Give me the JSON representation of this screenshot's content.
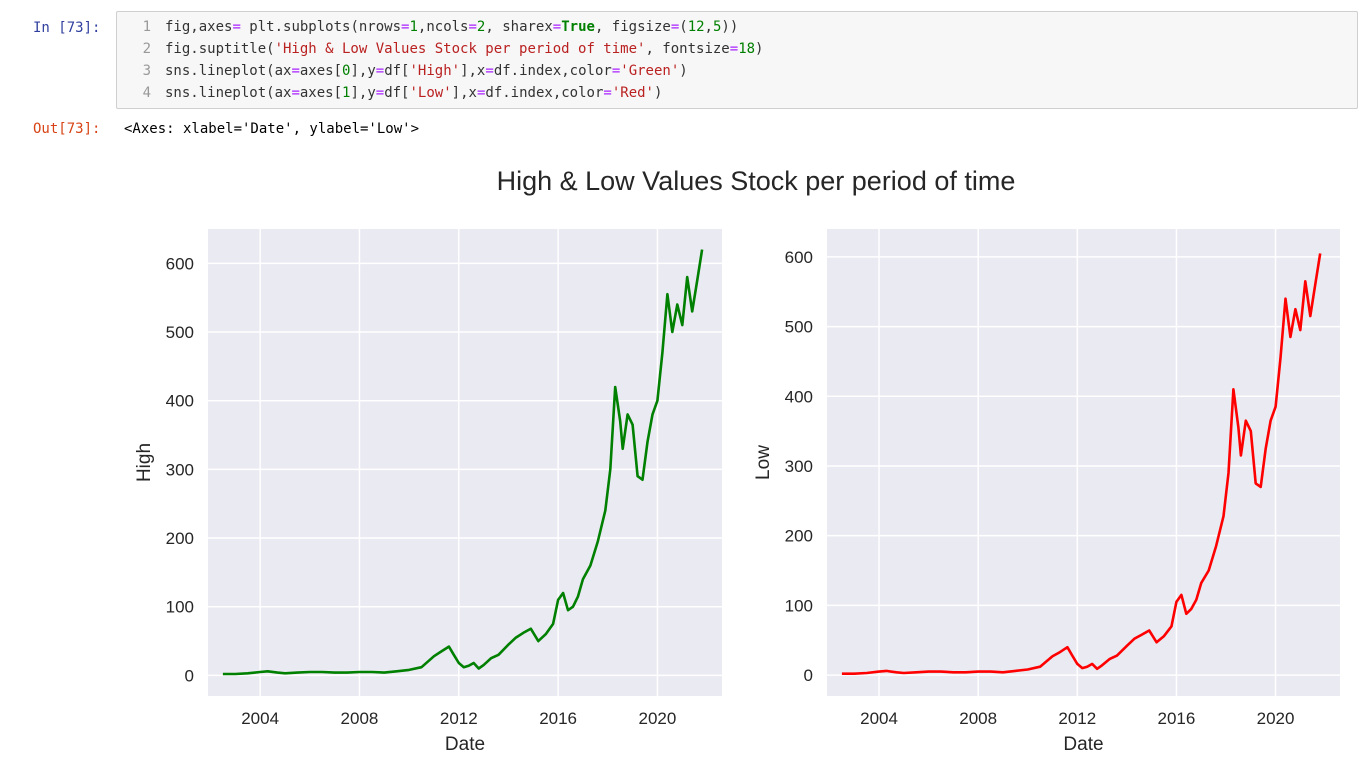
{
  "cell": {
    "in_prompt": "In [73]:",
    "out_prompt": "Out[73]:",
    "output_text": "<Axes: xlabel='Date', ylabel='Low'>",
    "code_lines": [
      {
        "n": "1",
        "html": "fig,axes<span class='op'>=</span> plt.subplots(nrows<span class='op'>=</span><span class='num'>1</span>,ncols<span class='op'>=</span><span class='num'>2</span>, sharex<span class='op'>=</span><span class='kw'>True</span>, figsize<span class='op'>=</span>(<span class='num'>12</span>,<span class='num'>5</span>))"
      },
      {
        "n": "2",
        "html": "fig.suptitle(<span class='str'>'High &amp; Low Values Stock per period of time'</span>, fontsize<span class='op'>=</span><span class='num'>18</span>)"
      },
      {
        "n": "3",
        "html": "sns.lineplot(ax<span class='op'>=</span>axes[<span class='num'>0</span>],y<span class='op'>=</span>df[<span class='str'>'High'</span>],x<span class='op'>=</span>df.index,color<span class='op'>=</span><span class='str'>'Green'</span>)"
      },
      {
        "n": "4",
        "html": "sns.lineplot(ax<span class='op'>=</span>axes[<span class='num'>1</span>],y<span class='op'>=</span>df[<span class='str'>'Low'</span>],x<span class='op'>=</span>df.index,color<span class='op'>=</span><span class='str'>'Red'</span>)"
      }
    ]
  },
  "figure": {
    "suptitle": "High & Low Values Stock per period of time"
  },
  "chart_data": [
    {
      "type": "line",
      "xlabel": "Date",
      "ylabel": "High",
      "color": "#008000",
      "xticks": [
        "2004",
        "2008",
        "2012",
        "2016",
        "2020"
      ],
      "yticks": [
        0,
        100,
        200,
        300,
        400,
        500,
        600
      ],
      "xlim": [
        2001.9,
        2022.6
      ],
      "ylim": [
        -30,
        650
      ],
      "grid": true,
      "series": [
        {
          "x": [
            2002.5,
            2003.0,
            2003.5,
            2004.0,
            2004.3,
            2004.7,
            2005.0,
            2005.5,
            2006.0,
            2006.5,
            2007.0,
            2007.5,
            2008.0,
            2008.5,
            2009.0,
            2009.5,
            2010.0,
            2010.5,
            2011.0,
            2011.3,
            2011.6,
            2011.8,
            2012.0,
            2012.2,
            2012.4,
            2012.6,
            2012.8,
            2013.0,
            2013.3,
            2013.6,
            2014.0,
            2014.3,
            2014.6,
            2014.9,
            2015.2,
            2015.5,
            2015.8,
            2016.0,
            2016.2,
            2016.4,
            2016.6,
            2016.8,
            2017.0,
            2017.3,
            2017.6,
            2017.9,
            2018.1,
            2018.3,
            2018.5,
            2018.6,
            2018.8,
            2019.0,
            2019.2,
            2019.4,
            2019.6,
            2019.8,
            2020.0,
            2020.2,
            2020.4,
            2020.6,
            2020.8,
            2021.0,
            2021.2,
            2021.4,
            2021.6,
            2021.8
          ],
          "y": [
            2,
            2,
            3,
            5,
            6,
            4,
            3,
            4,
            5,
            5,
            4,
            4,
            5,
            5,
            4,
            6,
            8,
            12,
            28,
            35,
            42,
            30,
            18,
            12,
            14,
            18,
            10,
            15,
            25,
            30,
            45,
            55,
            62,
            68,
            50,
            60,
            75,
            110,
            120,
            95,
            100,
            115,
            140,
            160,
            195,
            240,
            300,
            420,
            370,
            330,
            380,
            365,
            290,
            285,
            340,
            380,
            400,
            470,
            555,
            500,
            540,
            510,
            580,
            530,
            575,
            620
          ]
        }
      ]
    },
    {
      "type": "line",
      "xlabel": "Date",
      "ylabel": "Low",
      "color": "#ff0000",
      "xticks": [
        "2004",
        "2008",
        "2012",
        "2016",
        "2020"
      ],
      "yticks": [
        0,
        100,
        200,
        300,
        400,
        500,
        600
      ],
      "xlim": [
        2001.9,
        2022.6
      ],
      "ylim": [
        -30,
        640
      ],
      "grid": true,
      "series": [
        {
          "x": [
            2002.5,
            2003.0,
            2003.5,
            2004.0,
            2004.3,
            2004.7,
            2005.0,
            2005.5,
            2006.0,
            2006.5,
            2007.0,
            2007.5,
            2008.0,
            2008.5,
            2009.0,
            2009.5,
            2010.0,
            2010.5,
            2011.0,
            2011.3,
            2011.6,
            2011.8,
            2012.0,
            2012.2,
            2012.4,
            2012.6,
            2012.8,
            2013.0,
            2013.3,
            2013.6,
            2014.0,
            2014.3,
            2014.6,
            2014.9,
            2015.2,
            2015.5,
            2015.8,
            2016.0,
            2016.2,
            2016.4,
            2016.6,
            2016.8,
            2017.0,
            2017.3,
            2017.6,
            2017.9,
            2018.1,
            2018.3,
            2018.5,
            2018.6,
            2018.8,
            2019.0,
            2019.2,
            2019.4,
            2019.6,
            2019.8,
            2020.0,
            2020.2,
            2020.4,
            2020.6,
            2020.8,
            2021.0,
            2021.2,
            2021.4,
            2021.6,
            2021.8
          ],
          "y": [
            2,
            2,
            3,
            5,
            6,
            4,
            3,
            4,
            5,
            5,
            4,
            4,
            5,
            5,
            4,
            6,
            8,
            12,
            27,
            33,
            40,
            28,
            16,
            10,
            12,
            16,
            9,
            14,
            23,
            28,
            42,
            52,
            58,
            64,
            47,
            56,
            70,
            105,
            115,
            88,
            95,
            108,
            132,
            150,
            185,
            228,
            290,
            410,
            355,
            315,
            365,
            350,
            275,
            270,
            325,
            365,
            385,
            455,
            540,
            485,
            525,
            495,
            565,
            515,
            560,
            605
          ]
        }
      ]
    }
  ]
}
